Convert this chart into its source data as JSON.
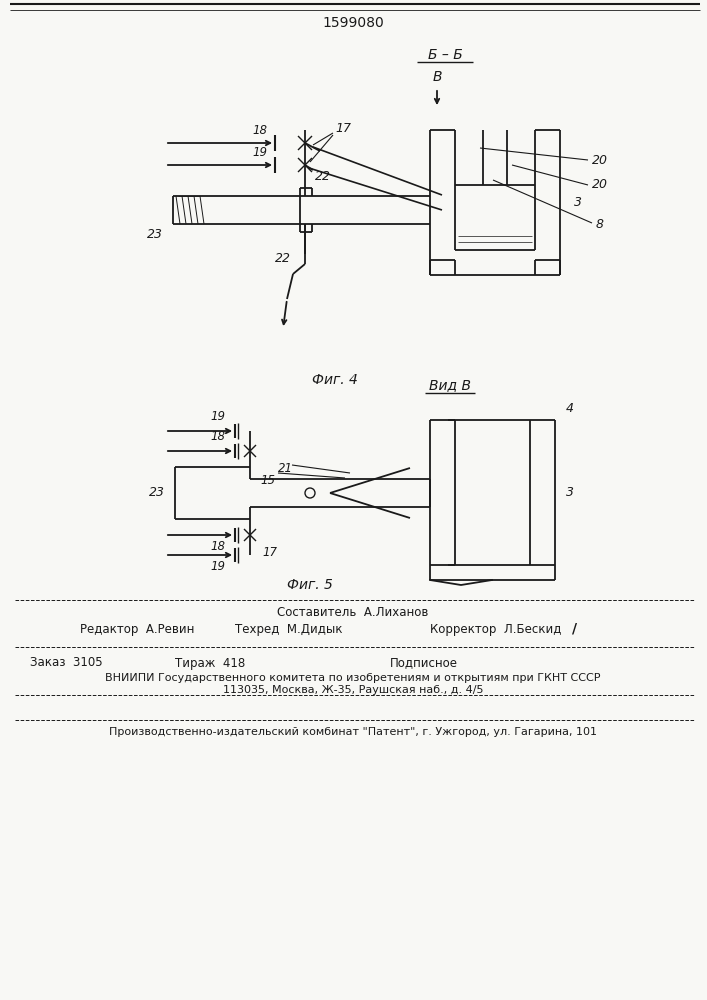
{
  "patent_number": "1599080",
  "bg_color": "#f8f8f5",
  "line_color": "#1a1a1a",
  "fig4_label": "Фиг. 4",
  "fig5_label": "Фиг. 5",
  "section_label": "Б – Б",
  "view_label": "Вид В",
  "footer_sestavitel": "Составитель  А.Лиханов",
  "footer_editor": "Редактор  А.Ревин",
  "footer_tehred": "Техред  М.Дидык",
  "footer_korrektor": "Корректор  Л.Бескид",
  "footer_zakaz": "Заказ  3105",
  "footer_tiraj": "Тираж  418",
  "footer_podpisnoe": "Подписное",
  "footer_vniiipi": "ВНИИПИ Государственного комитета по изобретениям и открытиям при ГКНТ СССР",
  "footer_address": "113035, Москва, Ж-35, Раушская наб., д. 4/5",
  "footer_kombinat": "Производственно-издательский комбинат \"Патент\", г. Ужгород, ул. Гагарина, 101"
}
